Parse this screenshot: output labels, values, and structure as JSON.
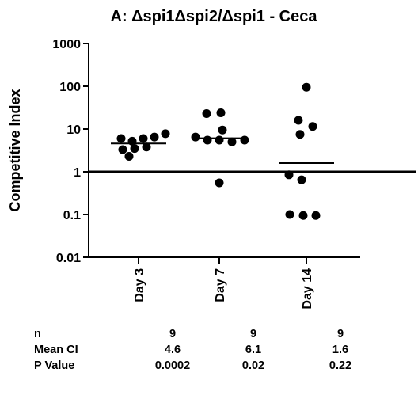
{
  "chart_data": {
    "type": "scatter",
    "title": "A: Δspi1Δspi2/Δspi1 - Ceca",
    "ylabel": "Competitive Index",
    "xlabel": "",
    "yscale": "log",
    "ylim": [
      0.01,
      1000
    ],
    "yticks": [
      "0.01",
      "0.1",
      "1",
      "10",
      "100",
      "1000"
    ],
    "reference_line": 1,
    "categories": [
      "Day 3",
      "Day 7",
      "Day 14"
    ],
    "groups": [
      {
        "category": "Day 3",
        "mean": 4.6,
        "points": [
          6.0,
          5.2,
          6.0,
          6.5,
          7.8,
          3.3,
          3.5,
          3.8,
          2.3
        ]
      },
      {
        "category": "Day 7",
        "mean": 6.1,
        "points": [
          23,
          24,
          9.5,
          6.5,
          5.5,
          5.5,
          5.0,
          5.5,
          0.55
        ]
      },
      {
        "category": "Day 14",
        "mean": 1.6,
        "points": [
          95,
          16,
          11.5,
          7.5,
          0.85,
          0.65,
          0.1,
          0.095,
          0.095
        ]
      }
    ]
  },
  "stats": {
    "labels": [
      "n",
      "Mean CI",
      "P Value"
    ],
    "columns": [
      {
        "n": "9",
        "mean_ci": "4.6",
        "p_value": "0.0002"
      },
      {
        "n": "9",
        "mean_ci": "6.1",
        "p_value": "0.02"
      },
      {
        "n": "9",
        "mean_ci": "1.6",
        "p_value": "0.22"
      }
    ]
  }
}
